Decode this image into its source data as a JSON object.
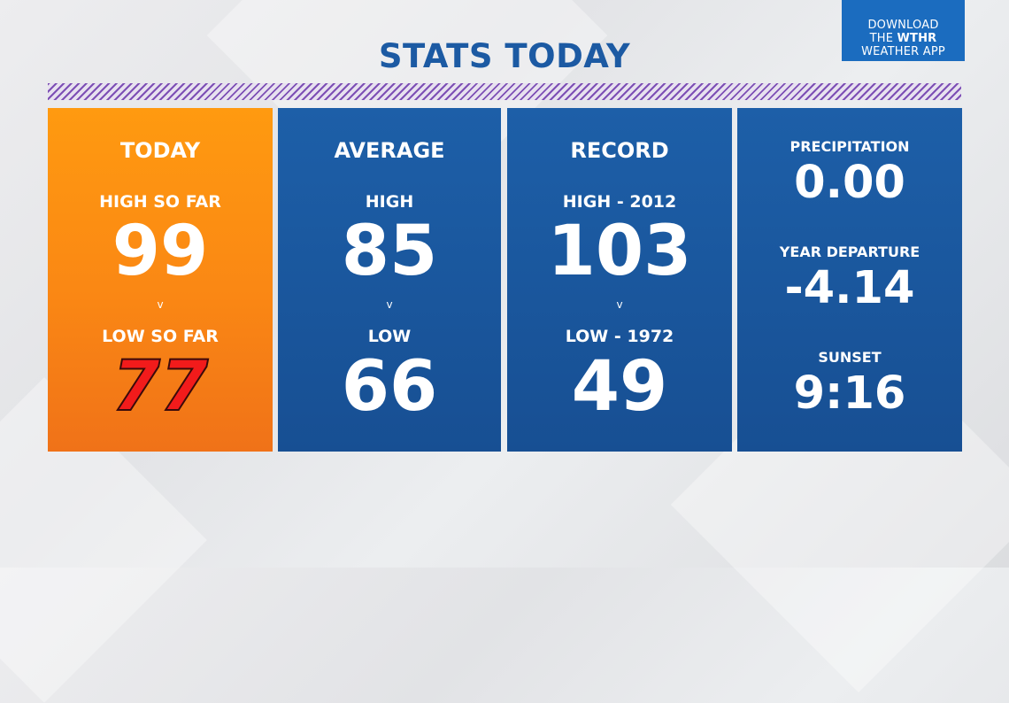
{
  "title": "STATS TODAY",
  "app_badge": {
    "line1": "DOWNLOAD",
    "line2_prefix": "THE ",
    "line2_brand": "WTHR",
    "line3": "WEATHER APP"
  },
  "today": {
    "heading": "TODAY",
    "high_label": "HIGH SO FAR",
    "high_value": "99",
    "separator": "v",
    "low_label": "LOW SO FAR",
    "low_value": "77"
  },
  "average": {
    "heading": "AVERAGE",
    "high_label": "HIGH",
    "high_value": "85",
    "separator": "v",
    "low_label": "LOW",
    "low_value": "66"
  },
  "record": {
    "heading": "RECORD",
    "high_label": "HIGH - 2012",
    "high_value": "103",
    "separator": "v",
    "low_label": "LOW - 1972",
    "low_value": "49"
  },
  "stats": {
    "precip_label": "PRECIPITATION",
    "precip_value": "0.00",
    "departure_label": "YEAR DEPARTURE",
    "departure_value": "-4.14",
    "sunset_label": "SUNSET",
    "sunset_value": "9:16"
  },
  "colors": {
    "title": "#1c5aa3",
    "today_panel": "#fa8714",
    "blue_panel": "#1b559c",
    "low_today": "#f21b1b",
    "stripe": "#7d4fb5"
  }
}
